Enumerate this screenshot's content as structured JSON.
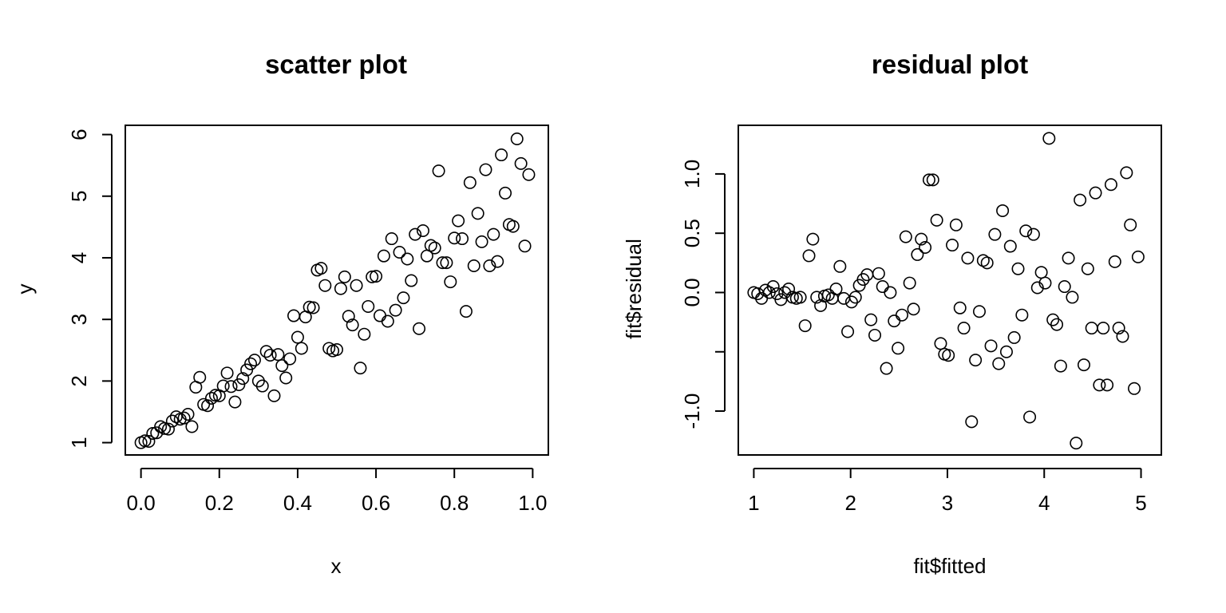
{
  "chart_data": [
    {
      "type": "scatter",
      "title": "scatter plot",
      "xlabel": "x",
      "ylabel": "y",
      "xlim": [
        -0.04,
        1.04
      ],
      "ylim": [
        0.8,
        6.15
      ],
      "xticks": [
        0.0,
        0.2,
        0.4,
        0.6,
        0.8,
        1.0
      ],
      "xtick_labels": [
        "0.0",
        "0.2",
        "0.4",
        "0.6",
        "0.8",
        "1.0"
      ],
      "yticks": [
        1,
        2,
        3,
        4,
        5,
        6
      ],
      "ytick_labels": [
        "1",
        "2",
        "3",
        "4",
        "5",
        "6"
      ],
      "grid": false,
      "points": [
        [
          0.0,
          1.0
        ],
        [
          0.01,
          1.03
        ],
        [
          0.02,
          1.02
        ],
        [
          0.03,
          1.15
        ],
        [
          0.04,
          1.16
        ],
        [
          0.05,
          1.26
        ],
        [
          0.06,
          1.23
        ],
        [
          0.07,
          1.22
        ],
        [
          0.08,
          1.35
        ],
        [
          0.09,
          1.42
        ],
        [
          0.1,
          1.38
        ],
        [
          0.11,
          1.4
        ],
        [
          0.12,
          1.46
        ],
        [
          0.13,
          1.26
        ],
        [
          0.14,
          1.9
        ],
        [
          0.15,
          2.06
        ],
        [
          0.16,
          1.62
        ],
        [
          0.17,
          1.6
        ],
        [
          0.18,
          1.72
        ],
        [
          0.19,
          1.77
        ],
        [
          0.2,
          1.76
        ],
        [
          0.21,
          1.92
        ],
        [
          0.22,
          2.13
        ],
        [
          0.23,
          1.91
        ],
        [
          0.24,
          1.66
        ],
        [
          0.25,
          1.94
        ],
        [
          0.26,
          2.04
        ],
        [
          0.27,
          2.18
        ],
        [
          0.28,
          2.28
        ],
        [
          0.29,
          2.34
        ],
        [
          0.3,
          2.0
        ],
        [
          0.31,
          1.92
        ],
        [
          0.32,
          2.48
        ],
        [
          0.33,
          2.42
        ],
        [
          0.34,
          1.76
        ],
        [
          0.35,
          2.43
        ],
        [
          0.36,
          2.25
        ],
        [
          0.37,
          2.05
        ],
        [
          0.38,
          2.36
        ],
        [
          0.39,
          3.06
        ],
        [
          0.4,
          2.71
        ],
        [
          0.41,
          2.53
        ],
        [
          0.42,
          3.04
        ],
        [
          0.43,
          3.2
        ],
        [
          0.44,
          3.19
        ],
        [
          0.45,
          3.8
        ],
        [
          0.46,
          3.83
        ],
        [
          0.47,
          3.55
        ],
        [
          0.48,
          2.53
        ],
        [
          0.49,
          2.49
        ],
        [
          0.5,
          2.51
        ],
        [
          0.51,
          3.5
        ],
        [
          0.52,
          3.69
        ],
        [
          0.53,
          3.05
        ],
        [
          0.54,
          2.91
        ],
        [
          0.55,
          3.55
        ],
        [
          0.56,
          2.21
        ],
        [
          0.57,
          2.76
        ],
        [
          0.58,
          3.21
        ],
        [
          0.59,
          3.69
        ],
        [
          0.6,
          3.7
        ],
        [
          0.61,
          3.06
        ],
        [
          0.62,
          4.03
        ],
        [
          0.63,
          2.97
        ],
        [
          0.64,
          4.31
        ],
        [
          0.65,
          3.15
        ],
        [
          0.66,
          4.09
        ],
        [
          0.67,
          3.35
        ],
        [
          0.68,
          3.98
        ],
        [
          0.69,
          3.63
        ],
        [
          0.7,
          4.38
        ],
        [
          0.71,
          2.85
        ],
        [
          0.72,
          4.44
        ],
        [
          0.73,
          4.03
        ],
        [
          0.74,
          4.2
        ],
        [
          0.75,
          4.16
        ],
        [
          0.76,
          5.41
        ],
        [
          0.77,
          3.92
        ],
        [
          0.78,
          3.92
        ],
        [
          0.79,
          3.61
        ],
        [
          0.8,
          4.32
        ],
        [
          0.81,
          4.6
        ],
        [
          0.82,
          4.31
        ],
        [
          0.83,
          3.13
        ],
        [
          0.84,
          5.22
        ],
        [
          0.85,
          3.87
        ],
        [
          0.86,
          4.72
        ],
        [
          0.87,
          4.26
        ],
        [
          0.88,
          5.43
        ],
        [
          0.89,
          3.87
        ],
        [
          0.9,
          4.38
        ],
        [
          0.91,
          3.94
        ],
        [
          0.92,
          5.67
        ],
        [
          0.93,
          5.05
        ],
        [
          0.94,
          4.54
        ],
        [
          0.95,
          4.51
        ],
        [
          0.96,
          5.93
        ],
        [
          0.97,
          5.53
        ],
        [
          0.98,
          4.19
        ],
        [
          0.99,
          5.35
        ]
      ]
    },
    {
      "type": "scatter",
      "title": "residual plot",
      "xlabel": "fit$fitted",
      "ylabel": "fit$residual",
      "xlim": [
        0.84,
        5.21
      ],
      "ylim": [
        -1.37,
        1.41
      ],
      "xticks": [
        1,
        2,
        3,
        4,
        5
      ],
      "xtick_labels": [
        "1",
        "2",
        "3",
        "4",
        "5"
      ],
      "yticks": [
        -1.0,
        -0.5,
        0.0,
        0.5,
        1.0
      ],
      "ytick_labels": [
        "-1.0",
        "",
        "0.0",
        "0.5",
        "1.0"
      ],
      "grid": false,
      "points": [
        [
          1.0,
          0.0
        ],
        [
          1.04,
          -0.01
        ],
        [
          1.08,
          -0.05
        ],
        [
          1.12,
          0.02
        ],
        [
          1.16,
          0.0
        ],
        [
          1.2,
          0.05
        ],
        [
          1.24,
          -0.01
        ],
        [
          1.28,
          -0.06
        ],
        [
          1.32,
          0.0
        ],
        [
          1.36,
          0.03
        ],
        [
          1.4,
          -0.04
        ],
        [
          1.44,
          -0.05
        ],
        [
          1.48,
          -0.04
        ],
        [
          1.53,
          -0.28
        ],
        [
          1.57,
          0.31
        ],
        [
          1.61,
          0.45
        ],
        [
          1.65,
          -0.04
        ],
        [
          1.69,
          -0.11
        ],
        [
          1.73,
          -0.03
        ],
        [
          1.77,
          -0.02
        ],
        [
          1.81,
          -0.05
        ],
        [
          1.85,
          0.03
        ],
        [
          1.89,
          0.22
        ],
        [
          1.93,
          -0.05
        ],
        [
          1.97,
          -0.33
        ],
        [
          2.01,
          -0.08
        ],
        [
          2.05,
          -0.04
        ],
        [
          2.09,
          0.06
        ],
        [
          2.13,
          0.11
        ],
        [
          2.17,
          0.15
        ],
        [
          2.21,
          -0.23
        ],
        [
          2.25,
          -0.36
        ],
        [
          2.29,
          0.16
        ],
        [
          2.33,
          0.05
        ],
        [
          2.37,
          -0.64
        ],
        [
          2.41,
          0.0
        ],
        [
          2.45,
          -0.24
        ],
        [
          2.49,
          -0.47
        ],
        [
          2.53,
          -0.19
        ],
        [
          2.57,
          0.47
        ],
        [
          2.61,
          0.08
        ],
        [
          2.65,
          -0.14
        ],
        [
          2.69,
          0.32
        ],
        [
          2.73,
          0.45
        ],
        [
          2.77,
          0.38
        ],
        [
          2.81,
          0.95
        ],
        [
          2.85,
          0.95
        ],
        [
          2.89,
          0.61
        ],
        [
          2.93,
          -0.43
        ],
        [
          2.97,
          -0.52
        ],
        [
          3.01,
          -0.53
        ],
        [
          3.05,
          0.4
        ],
        [
          3.09,
          0.57
        ],
        [
          3.13,
          -0.13
        ],
        [
          3.17,
          -0.3
        ],
        [
          3.21,
          0.29
        ],
        [
          3.25,
          -1.09
        ],
        [
          3.29,
          -0.57
        ],
        [
          3.33,
          -0.16
        ],
        [
          3.37,
          0.27
        ],
        [
          3.41,
          0.25
        ],
        [
          3.45,
          -0.45
        ],
        [
          3.49,
          0.49
        ],
        [
          3.53,
          -0.6
        ],
        [
          3.57,
          0.69
        ],
        [
          3.61,
          -0.5
        ],
        [
          3.65,
          0.39
        ],
        [
          3.69,
          -0.38
        ],
        [
          3.73,
          0.2
        ],
        [
          3.77,
          -0.19
        ],
        [
          3.81,
          0.52
        ],
        [
          3.85,
          -1.05
        ],
        [
          3.89,
          0.49
        ],
        [
          3.93,
          0.04
        ],
        [
          3.97,
          0.17
        ],
        [
          4.01,
          0.08
        ],
        [
          4.05,
          1.3
        ],
        [
          4.09,
          -0.23
        ],
        [
          4.13,
          -0.27
        ],
        [
          4.17,
          -0.62
        ],
        [
          4.21,
          0.05
        ],
        [
          4.25,
          0.29
        ],
        [
          4.29,
          -0.04
        ],
        [
          4.33,
          -1.27
        ],
        [
          4.37,
          0.78
        ],
        [
          4.41,
          -0.61
        ],
        [
          4.45,
          0.2
        ],
        [
          4.49,
          -0.3
        ],
        [
          4.53,
          0.84
        ],
        [
          4.57,
          -0.78
        ],
        [
          4.61,
          -0.3
        ],
        [
          4.65,
          -0.78
        ],
        [
          4.69,
          0.91
        ],
        [
          4.73,
          0.26
        ],
        [
          4.77,
          -0.3
        ],
        [
          4.81,
          -0.37
        ],
        [
          4.85,
          1.01
        ],
        [
          4.89,
          0.57
        ],
        [
          4.93,
          -0.81
        ],
        [
          4.97,
          0.3
        ]
      ]
    }
  ]
}
